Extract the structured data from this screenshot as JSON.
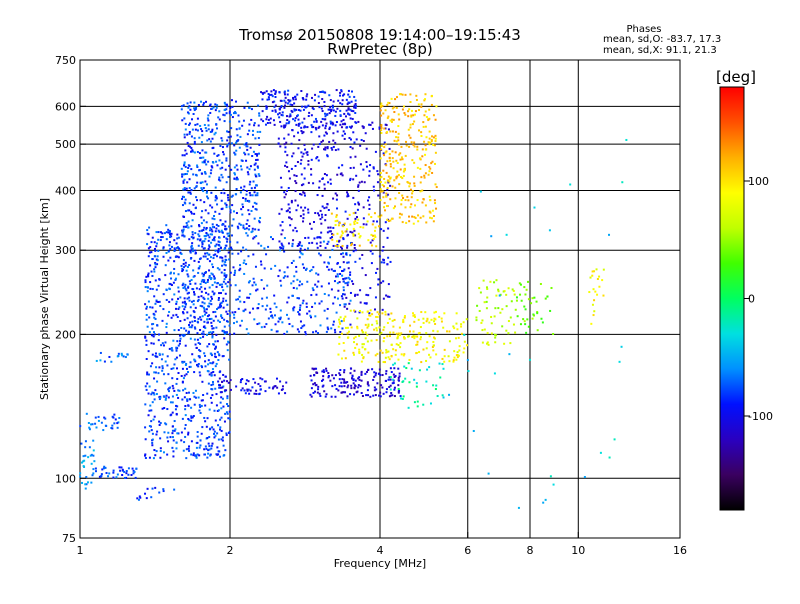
{
  "title_line1": "Tromsø 20150808 19:14:00–19:15:43",
  "title_line2": "RwPretec (8p)",
  "phases": {
    "title": "Phases",
    "line_o": "mean, sd,O: -83.7, 17.3",
    "line_x": "mean, sd,X:  91.1, 21.3"
  },
  "colorbar": {
    "unit_label": "[deg]",
    "range": [
      -180,
      180
    ],
    "ticks": [
      {
        "value": 100,
        "label": "100"
      },
      {
        "value": 0,
        "label": "0"
      },
      {
        "value": -100,
        "label": "-100"
      }
    ],
    "colors": [
      "#000000",
      "#3a0060",
      "#2a00c0",
      "#0010ff",
      "#0090ff",
      "#00e0e0",
      "#00ff60",
      "#40ff00",
      "#c0ff00",
      "#ffff00",
      "#ffb000",
      "#ff5000",
      "#ff0000"
    ]
  },
  "chart_data": {
    "type": "scatter",
    "xlabel": "Frequency [MHz]",
    "ylabel": "Stationary phase Virtual Height [km]",
    "xscale": "log",
    "yscale": "log",
    "xlim": [
      1,
      16
    ],
    "ylim": [
      75,
      750
    ],
    "x_ticks": [
      {
        "value": 1,
        "label": "1"
      },
      {
        "value": 2,
        "label": "2"
      },
      {
        "value": 4,
        "label": "4"
      },
      {
        "value": 6,
        "label": "6"
      },
      {
        "value": 8,
        "label": "8"
      },
      {
        "value": 10,
        "label": "10"
      },
      {
        "value": 16,
        "label": "16"
      }
    ],
    "y_ticks": [
      {
        "value": 75,
        "label": "75"
      },
      {
        "value": 100,
        "label": "100"
      },
      {
        "value": 200,
        "label": "200"
      },
      {
        "value": 300,
        "label": "300"
      },
      {
        "value": 400,
        "label": "400"
      },
      {
        "value": 500,
        "label": "500"
      },
      {
        "value": 600,
        "label": "600"
      },
      {
        "value": 750,
        "label": "750"
      }
    ],
    "x_grid": [
      2,
      4,
      6,
      8,
      10
    ],
    "y_grid": [
      100,
      200,
      300,
      400,
      500,
      600
    ],
    "color_by": "phase [deg]",
    "trace_groups": [
      {
        "x_range": [
          1.0,
          1.2
        ],
        "height_range": [
          125,
          138
        ],
        "phase": -70,
        "count": 30
      },
      {
        "x_range": [
          1.0,
          1.08
        ],
        "height_range": [
          95,
          120
        ],
        "phase": -60,
        "count": 30
      },
      {
        "x_range": [
          1.05,
          1.3
        ],
        "height_range": [
          100,
          106
        ],
        "phase": -80,
        "count": 40
      },
      {
        "x_range": [
          1.08,
          1.25
        ],
        "height_range": [
          175,
          185
        ],
        "phase": -70,
        "count": 15
      },
      {
        "x_range": [
          1.3,
          1.55
        ],
        "height_range": [
          90,
          96
        ],
        "phase": -80,
        "count": 14
      },
      {
        "x_range": [
          1.35,
          2.0
        ],
        "height_range": [
          110,
          340
        ],
        "phase": -80,
        "count": 900
      },
      {
        "x_range": [
          1.6,
          3.5
        ],
        "height_range": [
          200,
          320
        ],
        "phase": -80,
        "count": 400
      },
      {
        "x_range": [
          1.6,
          2.3
        ],
        "height_range": [
          320,
          620
        ],
        "phase": -80,
        "count": 500
      },
      {
        "x_range": [
          2.3,
          3.6
        ],
        "height_range": [
          540,
          650
        ],
        "phase": -95,
        "count": 250
      },
      {
        "x_range": [
          2.5,
          4.2
        ],
        "height_range": [
          300,
          560
        ],
        "phase": -105,
        "count": 350
      },
      {
        "x_range": [
          3.2,
          4.2
        ],
        "height_range": [
          220,
          300
        ],
        "phase": -100,
        "count": 80
      },
      {
        "x_range": [
          2.9,
          4.4
        ],
        "height_range": [
          148,
          170
        ],
        "phase": -110,
        "count": 180
      },
      {
        "x_range": [
          1.9,
          2.6
        ],
        "height_range": [
          150,
          162
        ],
        "phase": -100,
        "count": 60
      },
      {
        "x_range": [
          4.0,
          5.2
        ],
        "height_range": [
          340,
          640
        ],
        "phase": 110,
        "count": 300
      },
      {
        "x_range": [
          3.2,
          4.0
        ],
        "height_range": [
          305,
          360
        ],
        "phase": 100,
        "count": 60
      },
      {
        "x_range": [
          3.3,
          6.0
        ],
        "height_range": [
          175,
          225
        ],
        "phase": 90,
        "count": 250
      },
      {
        "x_range": [
          6.2,
          7.5
        ],
        "height_range": [
          190,
          260
        ],
        "phase": 60,
        "count": 60
      },
      {
        "x_range": [
          7.5,
          9.0
        ],
        "height_range": [
          200,
          260
        ],
        "phase": 40,
        "count": 40
      },
      {
        "x_range": [
          10.5,
          11.3
        ],
        "height_range": [
          210,
          275
        ],
        "phase": 90,
        "count": 20
      },
      {
        "x_range": [
          5.5,
          12.5
        ],
        "height_range": [
          85,
          520
        ],
        "phase": -40,
        "count": 30
      },
      {
        "x_range": [
          4.2,
          5.4
        ],
        "height_range": [
          140,
          175
        ],
        "phase": -20,
        "count": 40
      }
    ]
  }
}
